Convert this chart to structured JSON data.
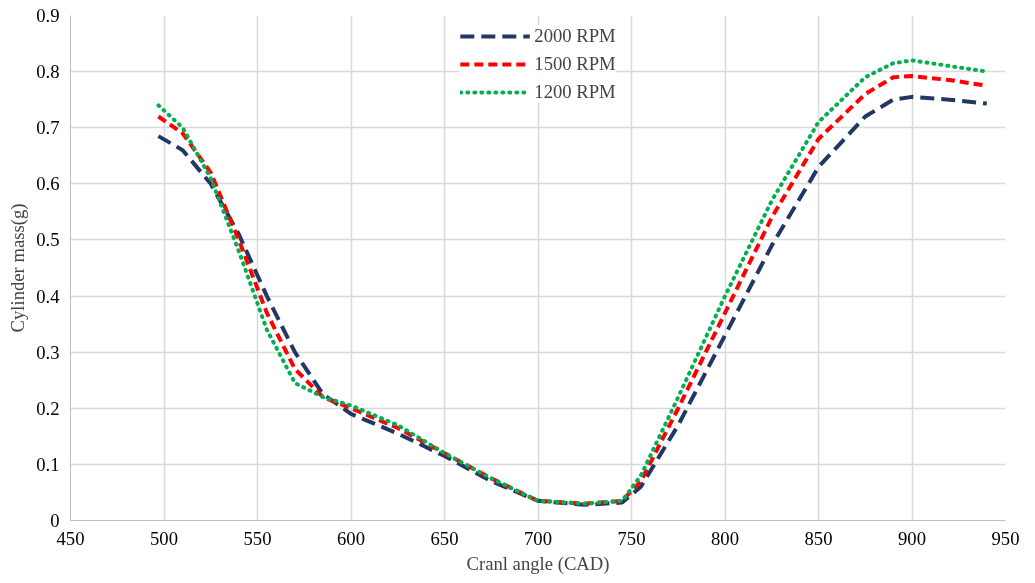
{
  "chart_data": {
    "type": "line",
    "xlabel": "Cranl angle (CAD)",
    "ylabel": "Cylinder mass(g)",
    "xlim": [
      450,
      950
    ],
    "xticks": [
      450,
      500,
      550,
      600,
      650,
      700,
      750,
      800,
      850,
      900,
      950
    ],
    "ylim": [
      0,
      0.9
    ],
    "yticks": [
      0,
      0.1,
      0.2,
      0.3,
      0.4,
      0.5,
      0.6,
      0.7,
      0.8,
      0.9
    ],
    "grid": true,
    "legend": "top",
    "marker": "none",
    "x": [
      497,
      510,
      525,
      540,
      555,
      570,
      585,
      600,
      625,
      650,
      675,
      700,
      725,
      745,
      755,
      775,
      800,
      825,
      850,
      875,
      890,
      900,
      920,
      940
    ],
    "series": [
      {
        "name": "2000 RPM",
        "color": "#203864",
        "line_style": "dashed",
        "values": [
          0.685,
          0.66,
          0.6,
          0.51,
          0.4,
          0.3,
          0.225,
          0.19,
          0.155,
          0.115,
          0.07,
          0.035,
          0.028,
          0.032,
          0.06,
          0.17,
          0.33,
          0.49,
          0.63,
          0.72,
          0.75,
          0.755,
          0.75,
          0.743
        ]
      },
      {
        "name": "1500 RPM",
        "color": "#ff0000",
        "line_style": "dashed",
        "values": [
          0.72,
          0.69,
          0.62,
          0.5,
          0.37,
          0.27,
          0.22,
          0.2,
          0.165,
          0.12,
          0.075,
          0.035,
          0.03,
          0.035,
          0.07,
          0.2,
          0.37,
          0.54,
          0.68,
          0.76,
          0.79,
          0.792,
          0.785,
          0.775
        ]
      },
      {
        "name": "1200 RPM",
        "color": "#00b050",
        "line_style": "dotted",
        "values": [
          0.74,
          0.7,
          0.61,
          0.48,
          0.34,
          0.245,
          0.22,
          0.205,
          0.17,
          0.12,
          0.075,
          0.035,
          0.03,
          0.035,
          0.08,
          0.22,
          0.4,
          0.57,
          0.71,
          0.79,
          0.815,
          0.82,
          0.81,
          0.8
        ]
      }
    ]
  }
}
